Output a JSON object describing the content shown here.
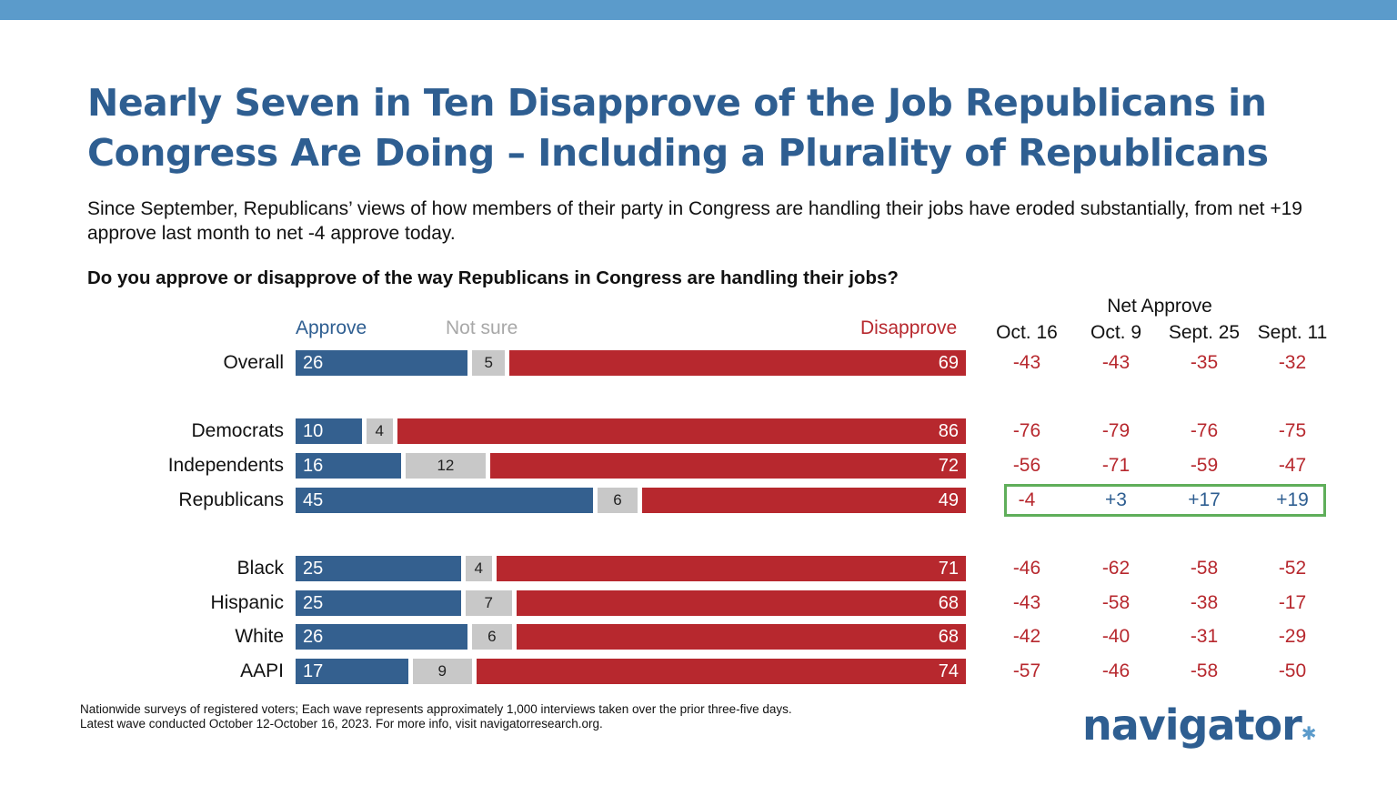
{
  "title": "Nearly Seven in Ten Disapprove of the Job Republicans in Congress Are Doing – Including a Plurality of Republicans",
  "subtitle": "Since September, Republicans’ views of how members of their party in Congress are handling their jobs have eroded substantially, from net +19 approve last month to net -4 approve today.",
  "question": "Do you approve or disapprove of the way Republicans in Congress are handling their jobs?",
  "footnote": {
    "line1": "Nationwide surveys of registered voters; Each wave represents approximately 1,000 interviews taken over the prior three-five days.",
    "line2": "Latest wave conducted October 12-October 16, 2023. For more info, visit navigatorresearch.org."
  },
  "logo": "navigator",
  "colors": {
    "approve": "#34608f",
    "not_sure": "#c8c8c8",
    "disapprove": "#b7282e",
    "title": "#2e5e91",
    "highlight": "#5fae5a"
  },
  "chart_data": {
    "type": "bar",
    "orientation": "horizontal-stacked",
    "series_labels": {
      "approve": "Approve",
      "not_sure": "Not sure",
      "disapprove": "Disapprove"
    },
    "net_title": "Net Approve",
    "net_columns": [
      "Oct. 16",
      "Oct. 9",
      "Sept. 25",
      "Sept. 11"
    ],
    "rows": [
      {
        "label": "Overall",
        "approve": 26,
        "not_sure": 5,
        "disapprove": 69,
        "net": [
          "-43",
          "-43",
          "-35",
          "-32"
        ]
      },
      {
        "label": "Democrats",
        "approve": 10,
        "not_sure": 4,
        "disapprove": 86,
        "net": [
          "-76",
          "-79",
          "-76",
          "-75"
        ]
      },
      {
        "label": "Independents",
        "approve": 16,
        "not_sure": 12,
        "disapprove": 72,
        "net": [
          "-56",
          "-71",
          "-59",
          "-47"
        ]
      },
      {
        "label": "Republicans",
        "approve": 45,
        "not_sure": 6,
        "disapprove": 49,
        "net": [
          "-4",
          "+3",
          "+17",
          "+19"
        ],
        "highlight": true
      },
      {
        "label": "Black",
        "approve": 25,
        "not_sure": 4,
        "disapprove": 71,
        "net": [
          "-46",
          "-62",
          "-58",
          "-52"
        ]
      },
      {
        "label": "Hispanic",
        "approve": 25,
        "not_sure": 7,
        "disapprove": 68,
        "net": [
          "-43",
          "-58",
          "-38",
          "-17"
        ]
      },
      {
        "label": "White",
        "approve": 26,
        "not_sure": 6,
        "disapprove": 68,
        "net": [
          "-42",
          "-40",
          "-31",
          "-29"
        ]
      },
      {
        "label": "AAPI",
        "approve": 17,
        "not_sure": 9,
        "disapprove": 74,
        "net": [
          "-57",
          "-46",
          "-58",
          "-50"
        ]
      }
    ]
  }
}
